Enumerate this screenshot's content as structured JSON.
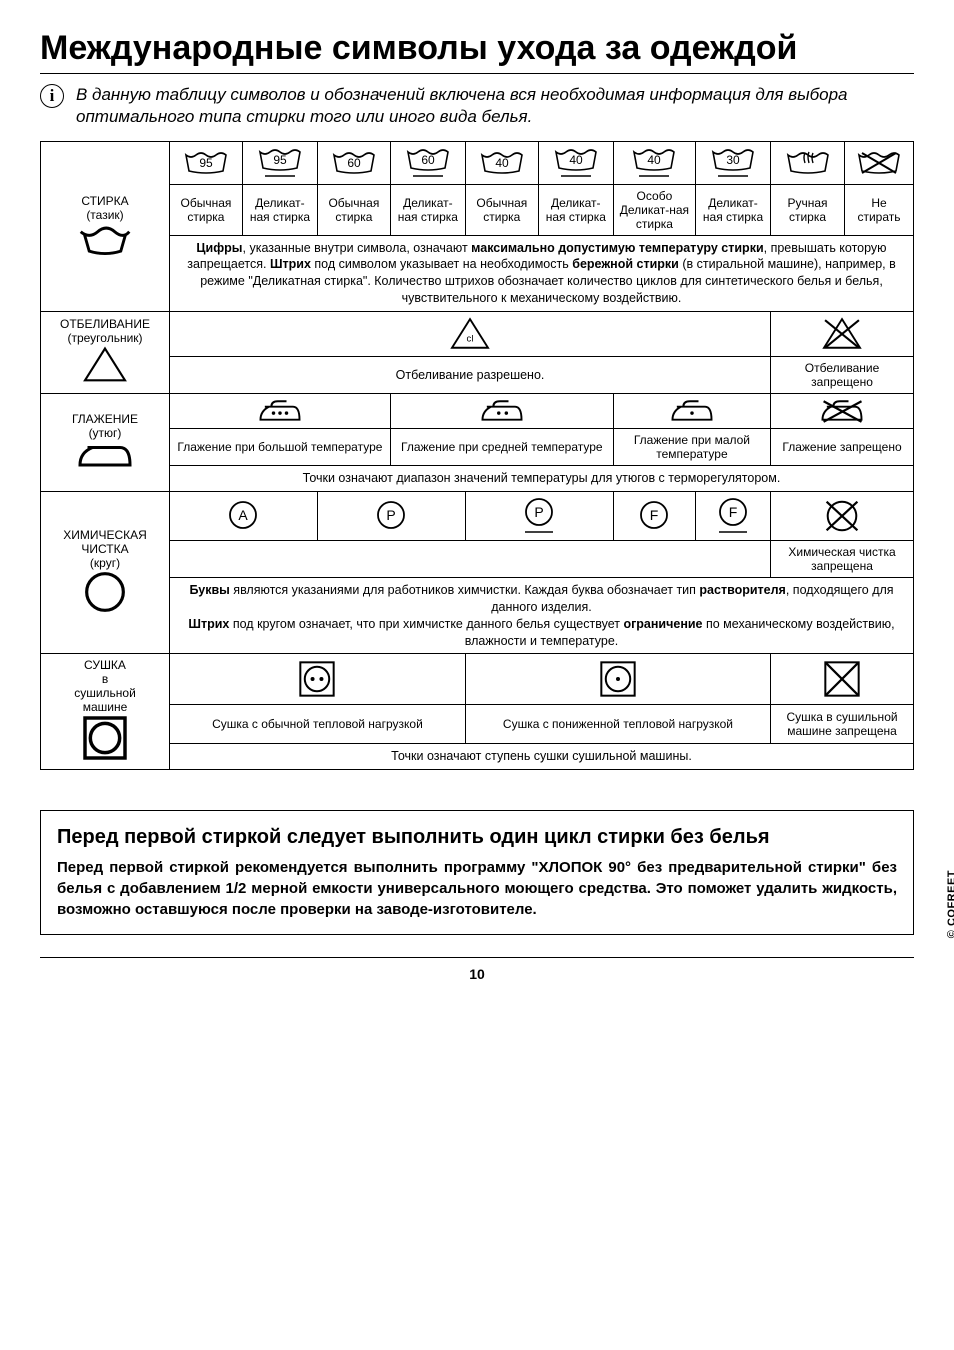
{
  "title": "Международные символы ухода за одеждой",
  "intro": "В данную таблицу символов и обозначений включена вся необходимая информация для выбора оптимального типа стирки того или иного вида белья.",
  "copyright": "© COFREET",
  "page_number": "10",
  "wash": {
    "label": "СТИРКА\n(тазик)",
    "temps": [
      "95",
      "95",
      "60",
      "60",
      "40",
      "40",
      "40",
      "30"
    ],
    "underline": [
      false,
      true,
      false,
      true,
      false,
      true,
      true,
      true
    ],
    "captions": [
      "Обычная стирка",
      "Деликат-ная стирка",
      "Обычная стирка",
      "Деликат-ная стирка",
      "Обычная стирка",
      "Деликат-ная стирка",
      "Особо Деликат-ная стирка",
      "Деликат-ная стирка"
    ],
    "handwash_caption": "Ручная стирка",
    "nowash_caption": "Не стирать",
    "desc_html": "<b>Цифры</b>, указанные внутри символа, означают <b>максимально допустимую температуру стирки</b>, превышать которую запрещается. <b>Штрих</b> под символом указывает на необходимость <b>бережной стирки</b> (в стиральной машине), например, в режиме \"Деликатная стирка\". Количество штрихов обозначает количество циклов для синтетического белья и белья, чувствительного к механическому воздействию."
  },
  "bleach": {
    "label": "ОТБЕЛИВАНИЕ\n(треугольник)",
    "allowed": "Отбеливание разрешено.",
    "forbidden": "Отбеливание запрещено"
  },
  "iron": {
    "label": "ГЛАЖЕНИЕ\n(утюг)",
    "captions": [
      "Глажение при большой температуре",
      "Глажение при средней температуре",
      "Глажение при малой температуре",
      "Глажение запрещено"
    ],
    "desc": "Точки означают диапазон значений температуры для утюгов с терморегулятором."
  },
  "dryclean": {
    "label": "ХИМИЧЕСКАЯ ЧИСТКА\n(круг)",
    "letters": [
      "A",
      "P",
      "P",
      "F",
      "F"
    ],
    "underline": [
      false,
      false,
      true,
      false,
      true
    ],
    "forbidden": "Химическая чистка запрещена",
    "desc_html": "<b>Буквы</b> являются указаниями для работников химчистки. Каждая буква обозначает тип <b>растворителя</b>, подходящего для данного изделия.<br><b>Штрих</b> под кругом означает, что при химчистке данного белья существует <b>ограничение</b> по механическому воздействию, влажности и температуре."
  },
  "dry": {
    "label": "СУШКА\nв\nсушильной\nмашине",
    "captions": [
      "Сушка с обычной тепловой нагрузкой",
      "Сушка с пониженной тепловой нагрузкой",
      "Сушка в сушильной машине запрещена"
    ],
    "desc": "Точки означают ступень сушки сушильной машины."
  },
  "firstwash": {
    "heading": "Перед первой стиркой следует выполнить один цикл стирки без белья",
    "body": "Перед первой стиркой рекомендуется выполнить программу \"ХЛОПОК 90° без предварительной стирки\" без белья с добавлением 1/2 мерной емкости универсального моющего средства. Это поможет удалить жидкость, возможно оставшуюся после проверки на заводе-изготовителе."
  },
  "style": {
    "stroke": "#000000",
    "bg": "#ffffff"
  }
}
